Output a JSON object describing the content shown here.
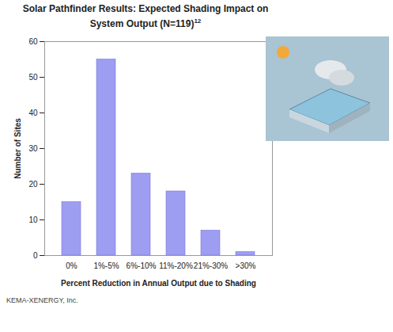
{
  "chart_data": {
    "type": "bar",
    "title": "Solar Pathfinder Results: Expected Shading Impact on System Output (N=119)",
    "title_footnote": "12",
    "x_label": "Percent Reduction in Annual Output due to Shading",
    "y_label": "Number of Sites",
    "caption": "KEMA-XENERGY, Inc.",
    "categories": [
      "0%",
      "1%-5%",
      "6%-10%",
      "11%-20%",
      "21%-30%",
      ">30%"
    ],
    "values": [
      15,
      55,
      23,
      18,
      7,
      1
    ],
    "color": "#9d9df2",
    "ylim": [
      0,
      60
    ],
    "yticks": [
      0,
      10,
      20,
      30,
      40,
      50,
      60
    ],
    "grid": false
  }
}
